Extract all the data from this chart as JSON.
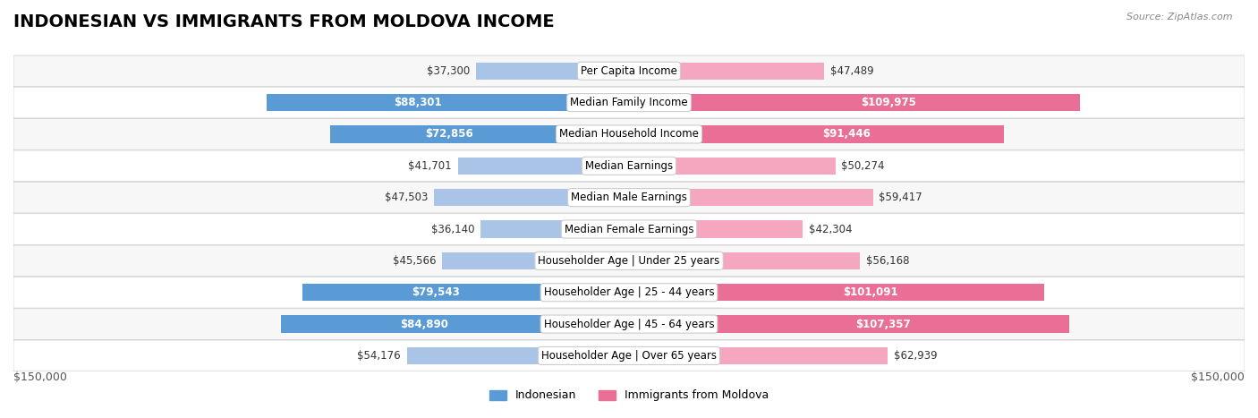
{
  "title": "INDONESIAN VS IMMIGRANTS FROM MOLDOVA INCOME",
  "source": "Source: ZipAtlas.com",
  "categories": [
    "Per Capita Income",
    "Median Family Income",
    "Median Household Income",
    "Median Earnings",
    "Median Male Earnings",
    "Median Female Earnings",
    "Householder Age | Under 25 years",
    "Householder Age | 25 - 44 years",
    "Householder Age | 45 - 64 years",
    "Householder Age | Over 65 years"
  ],
  "indonesian_values": [
    37300,
    88301,
    72856,
    41701,
    47503,
    36140,
    45566,
    79543,
    84890,
    54176
  ],
  "moldova_values": [
    47489,
    109975,
    91446,
    50274,
    59417,
    42304,
    56168,
    101091,
    107357,
    62939
  ],
  "indonesian_labels": [
    "$37,300",
    "$88,301",
    "$72,856",
    "$41,701",
    "$47,503",
    "$36,140",
    "$45,566",
    "$79,543",
    "$84,890",
    "$54,176"
  ],
  "moldova_labels": [
    "$47,489",
    "$109,975",
    "$91,446",
    "$50,274",
    "$59,417",
    "$42,304",
    "$56,168",
    "$101,091",
    "$107,357",
    "$62,939"
  ],
  "indonesian_color_light": "#aac4e8",
  "indonesian_color_dark": "#5b9bd5",
  "moldova_color_light": "#f4a7be",
  "moldova_color_dark": "#e96f96",
  "bar_bg_color": "#f0f0f0",
  "row_bg_color_odd": "#f7f7f7",
  "row_bg_color_even": "#ffffff",
  "max_value": 150000,
  "legend_indonesian": "Indonesian",
  "legend_moldova": "Immigrants from Moldova",
  "xlabel_left": "$150,000",
  "xlabel_right": "$150,000",
  "title_fontsize": 14,
  "label_fontsize": 8.5,
  "category_fontsize": 8.5
}
